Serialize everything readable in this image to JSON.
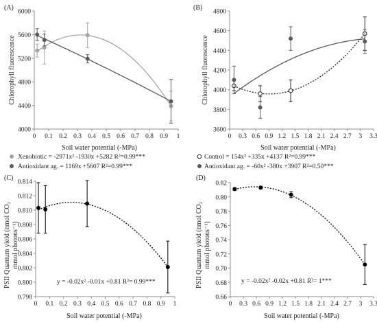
{
  "figure": {
    "colors": {
      "xenobiotic": "#a6a6a6",
      "antioxidant": "#595959",
      "control": "#222222",
      "psii": "#000000",
      "axis": "#8c8c8c"
    }
  },
  "chart_data": [
    {
      "panel": "(A)",
      "type": "scatter",
      "xlabel": "Soil water potential (-MPa)",
      "ylabel": "Chlorophyll fluorescence",
      "xlim": [
        0,
        1
      ],
      "ylim": [
        4000,
        6000
      ],
      "x_ticks": [
        "0",
        "0.1",
        "0.2",
        "0.3",
        "0.4",
        "0.5",
        "0.6",
        "0.7",
        "0.8",
        "0.9",
        "1"
      ],
      "y_ticks": [
        "4000",
        "4400",
        "4800",
        "5200",
        "5600",
        "6000"
      ],
      "series": [
        {
          "name": "Xenobiotic",
          "legend_text": "Xenobiotic = -2971x² -1930x +5282 R²=0.99***",
          "marker": "filled-circle",
          "points": [
            {
              "x": 0.02,
              "y": 5330,
              "err": 110
            },
            {
              "x": 0.07,
              "y": 5380,
              "err": 280
            },
            {
              "x": 0.37,
              "y": 5590,
              "err": 210
            },
            {
              "x": 0.95,
              "y": 4390,
              "err": 250
            }
          ]
        },
        {
          "name": "Antioxidant ag.",
          "legend_text": "Antioxidant ag. = 1169x +5607 R²=0.99***",
          "marker": "filled-circle",
          "points": [
            {
              "x": 0.02,
              "y": 5600,
              "err": 100
            },
            {
              "x": 0.07,
              "y": 5510,
              "err": 100
            },
            {
              "x": 0.37,
              "y": 5190,
              "err": 70
            },
            {
              "x": 0.95,
              "y": 4470,
              "err": 370
            }
          ]
        }
      ]
    },
    {
      "panel": "(B)",
      "type": "scatter",
      "xlabel": "Soil water potential (-MPa)",
      "ylabel": "Chlorophyll fluorescence",
      "xlim": [
        0,
        3.3
      ],
      "ylim": [
        3600,
        4800
      ],
      "x_ticks": [
        "0",
        "0.3",
        "0.6",
        "0.9",
        "1.2",
        "1.5",
        "1.8",
        "2.1",
        "2.4",
        "2.7",
        "3",
        "3.3"
      ],
      "y_ticks": [
        "3600",
        "3800",
        "4000",
        "4200",
        "4400",
        "4600",
        "4800"
      ],
      "series": [
        {
          "name": "Control",
          "legend_text": "Control = 154x² +335x +4137 R²=0.99***",
          "marker": "open-circle",
          "points": [
            {
              "x": 0.1,
              "y": 4040,
              "err": 50
            },
            {
              "x": 0.7,
              "y": 3960,
              "err": 80
            },
            {
              "x": 1.4,
              "y": 3990,
              "err": 110
            },
            {
              "x": 3.1,
              "y": 4570,
              "err": 170
            }
          ]
        },
        {
          "name": "Antioxidant ag.",
          "legend_text": "Antioxidant ag. = -60x² -380x +3907 R²=0.50***",
          "marker": "filled-circle",
          "points": [
            {
              "x": 0.1,
              "y": 4100,
              "err": 140
            },
            {
              "x": 0.7,
              "y": 3820,
              "err": 110
            },
            {
              "x": 1.4,
              "y": 4520,
              "err": 120
            },
            {
              "x": 3.1,
              "y": 4490,
              "err": 120
            }
          ]
        }
      ]
    },
    {
      "panel": "(C)",
      "type": "scatter",
      "xlabel": "Soil water potential (-MPa)",
      "ylabel_line1": "PSII Quantum yield (nmol CO₂",
      "ylabel_line2": "mmol photons⁻¹)",
      "xlim": [
        0,
        1
      ],
      "ylim": [
        0.798,
        0.814
      ],
      "x_ticks": [
        "0",
        "0.1",
        "0.2",
        "0.3",
        "0.4",
        "0.5",
        "0.6",
        "0.7",
        "0.8",
        "0.9",
        "1"
      ],
      "y_ticks": [
        "0.798",
        "0.800",
        "0.802",
        "0.804",
        "0.806",
        "0.808",
        "0.810",
        "0.812",
        "0.814"
      ],
      "equation": "y = -0.02x² -0.01x +0.81 R²= 0.99***",
      "series": [
        {
          "marker": "filled-circle",
          "points": [
            {
              "x": 0.02,
              "y": 0.8103,
              "err": 0.0035
            },
            {
              "x": 0.07,
              "y": 0.8101,
              "err": 0.0033
            },
            {
              "x": 0.37,
              "y": 0.8109,
              "err": 0.0032
            },
            {
              "x": 0.95,
              "y": 0.8021,
              "err": 0.0036
            }
          ]
        }
      ]
    },
    {
      "panel": "(D)",
      "type": "scatter",
      "xlabel": "Soil water potential (-MPa)",
      "ylabel_line1": "PSII Quantum yield (nmol CO₂",
      "ylabel_line2": "mmol photons⁻¹)",
      "xlim": [
        0,
        3.3
      ],
      "ylim": [
        0.66,
        0.82
      ],
      "x_ticks": [
        "0",
        "0.3",
        "0.6",
        "0.9",
        "1.2",
        "1.5",
        "1.8",
        "2.1",
        "2.4",
        "2.7",
        "3",
        "3.3"
      ],
      "y_ticks": [
        "0.66",
        "0.68",
        "0.70",
        "0.72",
        "0.74",
        "0.76",
        "0.78",
        "0.80",
        "0.82"
      ],
      "equation": "y = -0.02x² -0.02x +0.81 R²= 1***",
      "series": [
        {
          "marker": "filled-circle",
          "points": [
            {
              "x": 0.1,
              "y": 0.811,
              "err": 0.002
            },
            {
              "x": 0.7,
              "y": 0.813,
              "err": 0.002
            },
            {
              "x": 1.4,
              "y": 0.803,
              "err": 0.004
            },
            {
              "x": 3.1,
              "y": 0.705,
              "err": 0.028
            }
          ]
        }
      ]
    }
  ]
}
